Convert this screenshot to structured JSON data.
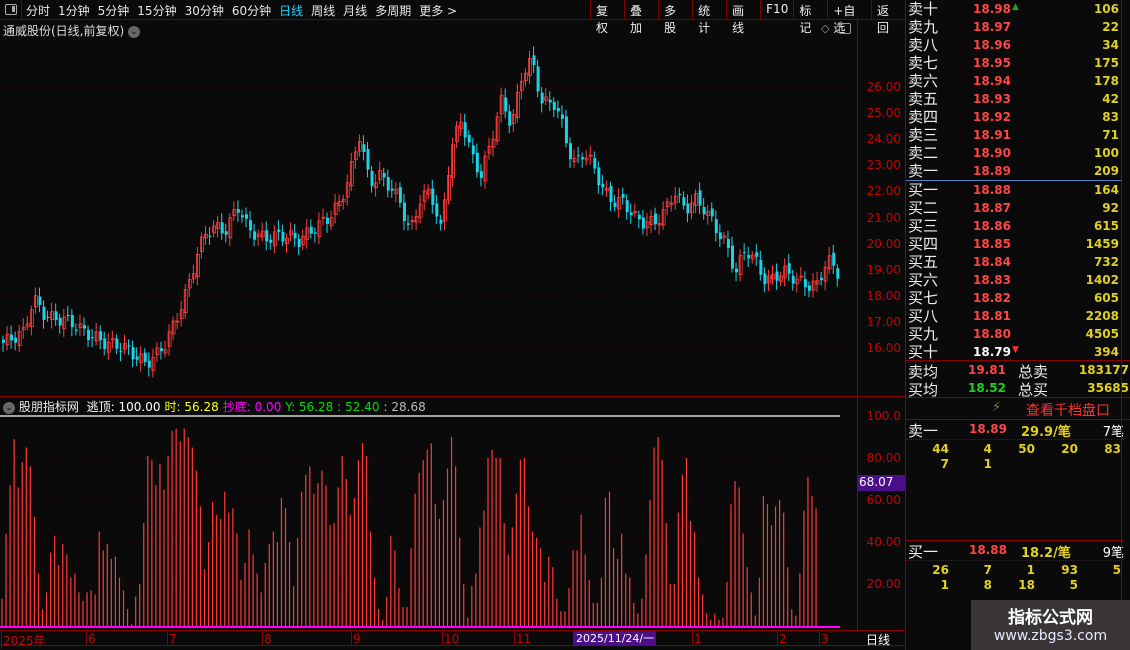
{
  "toolbar": {
    "tabs": [
      "分时",
      "1分钟",
      "5分钟",
      "15分钟",
      "30分钟",
      "60分钟",
      "日线",
      "周线",
      "月线",
      "多周期",
      "更多 >"
    ],
    "active_tab": "日线",
    "buttons": [
      "复权",
      "叠加",
      "多股",
      "统计",
      "画线",
      "F10",
      "标记",
      "+自选",
      "返回"
    ]
  },
  "chart": {
    "title": "通威股份(日线,前复权)",
    "price_axis": [
      "26.00",
      "25.00",
      "24.00",
      "23.00",
      "22.00",
      "21.00",
      "20.00",
      "19.00",
      "18.00",
      "17.00",
      "16.00"
    ],
    "up_color": "#ff3b3b",
    "down_color": "#19d3e6",
    "closes": [
      16.2,
      16.4,
      16.6,
      17.9,
      17.3,
      17.1,
      17.1,
      16.9,
      16.6,
      16.4,
      16.2,
      16.1,
      16.0,
      15.7,
      15.4,
      15.7,
      16.2,
      17.1,
      18.1,
      19.5,
      20.5,
      20.6,
      20.5,
      21.5,
      20.6,
      20.3,
      20.2,
      20.3,
      20.3,
      20.1,
      20.4,
      20.7,
      21.0,
      21.5,
      22.5,
      24.2,
      22.3,
      22.6,
      22.2,
      21.6,
      20.4,
      21.7,
      22.0,
      20.5,
      23.5,
      24.8,
      23.4,
      22.6,
      24.0,
      25.5,
      24.5,
      26.5,
      27.0,
      25.3,
      25.5,
      24.5,
      23.0,
      23.5,
      23.0,
      22.0,
      21.6,
      21.6,
      21.0,
      20.8,
      20.8,
      21.2,
      22.0,
      21.3,
      21.7,
      21.3,
      20.6,
      20.0,
      18.9,
      19.8,
      19.3,
      18.5,
      18.8,
      18.9,
      18.6,
      18.4,
      18.4,
      19.4,
      18.9
    ]
  },
  "indicator": {
    "name": "股朋指标网",
    "items": [
      {
        "label": "逃顶: 100.00",
        "color": "#ffffff"
      },
      {
        "label": "时: 56.28",
        "color": "#ffff00"
      },
      {
        "label": "抄底: 0.00",
        "color": "#ff00ff"
      },
      {
        "label": "Y: 56.28",
        "color": "#00e000"
      },
      {
        "label": ": 52.40",
        "color": "#00e000"
      },
      {
        "label": ": 28.68",
        "color": "#bbbbbb"
      }
    ],
    "axis": [
      "100.0",
      "80.00",
      "60.00",
      "40.00",
      "20.00"
    ],
    "current_value": "68.07",
    "bar_color": "#ff3838",
    "values": [
      13,
      44,
      67,
      89,
      66,
      78,
      85,
      76,
      52,
      25,
      8,
      16,
      35,
      43,
      29,
      39,
      34,
      23,
      25,
      16,
      12,
      16,
      17,
      15,
      45,
      36,
      39,
      32,
      33,
      23,
      17,
      8,
      1,
      14,
      20,
      49,
      81,
      79,
      67,
      77,
      65,
      81,
      93,
      94,
      88,
      94,
      90,
      85,
      74,
      57,
      27,
      40,
      59,
      53,
      51,
      64,
      54,
      56,
      44,
      22,
      30,
      46,
      34,
      25,
      16,
      30,
      39,
      45,
      40,
      61,
      56,
      40,
      19,
      42,
      64,
      72,
      76,
      63,
      68,
      74,
      67,
      48,
      49,
      66,
      81,
      70,
      53,
      61,
      79,
      87,
      81,
      45,
      23,
      8,
      3,
      14,
      43,
      36,
      18,
      9,
      9,
      37,
      63,
      73,
      79,
      84,
      87,
      58,
      51,
      60,
      75,
      90,
      76,
      42,
      20,
      4,
      19,
      25,
      47,
      55,
      80,
      84,
      80,
      80,
      49,
      34,
      47,
      63,
      79,
      80,
      57,
      45,
      42,
      37,
      21,
      33,
      28,
      13,
      7,
      7,
      18,
      36,
      36,
      53,
      34,
      22,
      11,
      11,
      23,
      61,
      64,
      37,
      32,
      44,
      25,
      23,
      11,
      6,
      13,
      34,
      60,
      85,
      90,
      79,
      49,
      20,
      20,
      54,
      72,
      80,
      50,
      45,
      23,
      15,
      6,
      3,
      6,
      3,
      4,
      21,
      58,
      69,
      66,
      44,
      28,
      16,
      5,
      23,
      62,
      58,
      48,
      57,
      60,
      54,
      28,
      8,
      5,
      25,
      55,
      71,
      62,
      56
    ]
  },
  "date_axis": {
    "labels": [
      "2025年",
      "6",
      "7",
      "8",
      "9",
      "10",
      "11",
      "1",
      "2",
      "3"
    ],
    "highlight": "2025/11/24/一",
    "period": "日线"
  },
  "orderbook": {
    "sell": [
      {
        "label": "卖十",
        "price": "18.98",
        "vol": "106"
      },
      {
        "label": "卖九",
        "price": "18.97",
        "vol": "22"
      },
      {
        "label": "卖八",
        "price": "18.96",
        "vol": "34"
      },
      {
        "label": "卖七",
        "price": "18.95",
        "vol": "175"
      },
      {
        "label": "卖六",
        "price": "18.94",
        "vol": "178"
      },
      {
        "label": "卖五",
        "price": "18.93",
        "vol": "42"
      },
      {
        "label": "卖四",
        "price": "18.92",
        "vol": "83"
      },
      {
        "label": "卖三",
        "price": "18.91",
        "vol": "71"
      },
      {
        "label": "卖二",
        "price": "18.90",
        "vol": "100"
      },
      {
        "label": "卖一",
        "price": "18.89",
        "vol": "209"
      }
    ],
    "buy": [
      {
        "label": "买一",
        "price": "18.88",
        "vol": "164"
      },
      {
        "label": "买二",
        "price": "18.87",
        "vol": "92"
      },
      {
        "label": "买三",
        "price": "18.86",
        "vol": "615"
      },
      {
        "label": "买四",
        "price": "18.85",
        "vol": "1459"
      },
      {
        "label": "买五",
        "price": "18.84",
        "vol": "732"
      },
      {
        "label": "买六",
        "price": "18.83",
        "vol": "1402"
      },
      {
        "label": "买七",
        "price": "18.82",
        "vol": "605"
      },
      {
        "label": "买八",
        "price": "18.81",
        "vol": "2208"
      },
      {
        "label": "买九",
        "price": "18.80",
        "vol": "4505"
      },
      {
        "label": "买十",
        "price": "18.79",
        "vol": "394"
      }
    ],
    "summary": {
      "sell_avg_label": "卖均",
      "sell_avg": "19.81",
      "total_sell_label": "总卖",
      "total_sell": "183177",
      "buy_avg_label": "买均",
      "buy_avg": "18.52",
      "total_buy_label": "总买",
      "total_buy": "35685"
    },
    "thousand_link": "查看千档盘口",
    "sell1_detail": {
      "label": "卖一",
      "price": "18.89",
      "per": "29.9/笔",
      "count": "7笔",
      "rows": [
        [
          "44",
          "4",
          "50",
          "20",
          "83"
        ],
        [
          "7",
          "1",
          "",
          "",
          ""
        ]
      ]
    },
    "buy1_detail": {
      "label": "买一",
      "price": "18.88",
      "per": "18.2/笔",
      "count": "9笔",
      "rows": [
        [
          "26",
          "7",
          "1",
          "93",
          "5"
        ],
        [
          "1",
          "8",
          "18",
          "5",
          ""
        ]
      ]
    }
  },
  "watermark": {
    "title": "指标公式网",
    "url": "www.zbgs3.com"
  }
}
